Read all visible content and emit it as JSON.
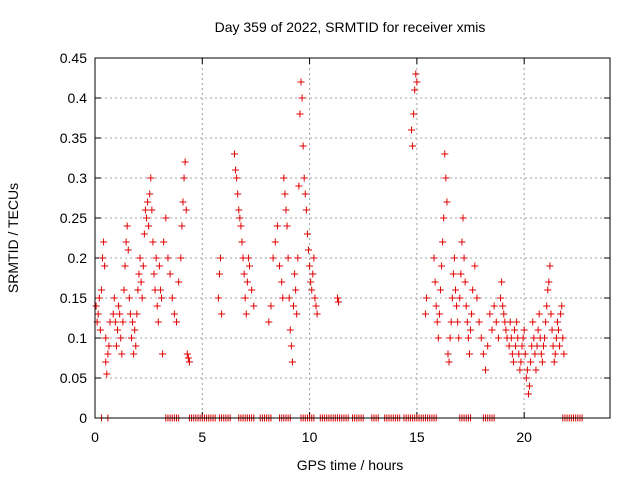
{
  "chart_data": {
    "type": "scatter",
    "title": "Day 359 of 2022, SRMTID for receiver xmis",
    "xlabel": "GPS time / hours",
    "ylabel": "SRMTID / TECUs",
    "xlim": [
      0,
      24
    ],
    "ylim": [
      0,
      0.45
    ],
    "xticks": [
      0,
      5,
      10,
      15,
      20
    ],
    "xtick_labels": [
      "0",
      "5",
      "10",
      "15",
      "20"
    ],
    "yticks": [
      0,
      0.05,
      0.1,
      0.15,
      0.2,
      0.25,
      0.3,
      0.35,
      0.4,
      0.45
    ],
    "ytick_labels": [
      "0",
      "0.05",
      "0.1",
      "0.15",
      "0.2",
      "0.25",
      "0.3",
      "0.35",
      "0.4",
      "0.45"
    ],
    "grid": true,
    "marker": "+",
    "color": "#e00000",
    "series": [
      {
        "name": "SRMTID",
        "points": [
          [
            0.05,
            0.14
          ],
          [
            0.1,
            0.12
          ],
          [
            0.15,
            0.13
          ],
          [
            0.2,
            0.15
          ],
          [
            0.25,
            0.11
          ],
          [
            0.3,
            0.16
          ],
          [
            0.35,
            0.2
          ],
          [
            0.4,
            0.22
          ],
          [
            0.45,
            0.19
          ],
          [
            0.5,
            0.1
          ],
          [
            0.5,
            0.07
          ],
          [
            0.55,
            0.055
          ],
          [
            0.6,
            0.08
          ],
          [
            0.65,
            0.09
          ],
          [
            0.7,
            0.12
          ],
          [
            0.85,
            0.13
          ],
          [
            0.9,
            0.15
          ],
          [
            0.95,
            0.12
          ],
          [
            1.0,
            0.09
          ],
          [
            1.05,
            0.11
          ],
          [
            1.1,
            0.14
          ],
          [
            1.15,
            0.13
          ],
          [
            1.2,
            0.1
          ],
          [
            1.25,
            0.08
          ],
          [
            1.3,
            0.12
          ],
          [
            1.35,
            0.16
          ],
          [
            1.4,
            0.19
          ],
          [
            1.45,
            0.22
          ],
          [
            1.5,
            0.24
          ],
          [
            1.55,
            0.21
          ],
          [
            1.6,
            0.15
          ],
          [
            1.65,
            0.13
          ],
          [
            1.7,
            0.1
          ],
          [
            1.75,
            0.12
          ],
          [
            1.8,
            0.08
          ],
          [
            1.85,
            0.11
          ],
          [
            1.9,
            0.09
          ],
          [
            1.95,
            0.13
          ],
          [
            2.0,
            0.16
          ],
          [
            2.05,
            0.18
          ],
          [
            2.1,
            0.2
          ],
          [
            2.15,
            0.17
          ],
          [
            2.2,
            0.15
          ],
          [
            2.25,
            0.19
          ],
          [
            2.3,
            0.23
          ],
          [
            2.35,
            0.26
          ],
          [
            2.4,
            0.25
          ],
          [
            2.45,
            0.27
          ],
          [
            2.5,
            0.24
          ],
          [
            2.55,
            0.28
          ],
          [
            2.6,
            0.3
          ],
          [
            2.65,
            0.26
          ],
          [
            2.7,
            0.22
          ],
          [
            2.75,
            0.18
          ],
          [
            2.8,
            0.16
          ],
          [
            2.85,
            0.2
          ],
          [
            2.9,
            0.14
          ],
          [
            2.95,
            0.12
          ],
          [
            3.0,
            0.19
          ],
          [
            3.05,
            0.16
          ],
          [
            3.1,
            0.15
          ],
          [
            3.15,
            0.08
          ],
          [
            3.2,
            0.22
          ],
          [
            3.3,
            0.25
          ],
          [
            3.4,
            0.2
          ],
          [
            3.5,
            0.18
          ],
          [
            3.6,
            0.15
          ],
          [
            3.7,
            0.13
          ],
          [
            3.8,
            0.12
          ],
          [
            3.9,
            0.17
          ],
          [
            4.0,
            0.2
          ],
          [
            4.05,
            0.24
          ],
          [
            4.1,
            0.27
          ],
          [
            4.15,
            0.3
          ],
          [
            4.2,
            0.32
          ],
          [
            4.25,
            0.26
          ],
          [
            4.3,
            0.08
          ],
          [
            4.35,
            0.075
          ],
          [
            4.4,
            0.07
          ],
          [
            5.75,
            0.15
          ],
          [
            5.8,
            0.18
          ],
          [
            5.85,
            0.2
          ],
          [
            5.9,
            0.13
          ],
          [
            6.5,
            0.33
          ],
          [
            6.55,
            0.31
          ],
          [
            6.6,
            0.3
          ],
          [
            6.65,
            0.28
          ],
          [
            6.7,
            0.26
          ],
          [
            6.75,
            0.25
          ],
          [
            6.8,
            0.24
          ],
          [
            6.85,
            0.22
          ],
          [
            6.9,
            0.2
          ],
          [
            6.95,
            0.18
          ],
          [
            7.0,
            0.15
          ],
          [
            7.05,
            0.13
          ],
          [
            7.1,
            0.17
          ],
          [
            7.15,
            0.2
          ],
          [
            7.2,
            0.19
          ],
          [
            7.3,
            0.16
          ],
          [
            7.4,
            0.14
          ],
          [
            8.1,
            0.12
          ],
          [
            8.2,
            0.14
          ],
          [
            8.3,
            0.2
          ],
          [
            8.4,
            0.22
          ],
          [
            8.5,
            0.24
          ],
          [
            8.6,
            0.19
          ],
          [
            8.7,
            0.17
          ],
          [
            8.75,
            0.15
          ],
          [
            8.8,
            0.3
          ],
          [
            8.85,
            0.28
          ],
          [
            8.9,
            0.26
          ],
          [
            8.95,
            0.24
          ],
          [
            9.0,
            0.2
          ],
          [
            9.05,
            0.15
          ],
          [
            9.1,
            0.11
          ],
          [
            9.15,
            0.09
          ],
          [
            9.2,
            0.07
          ],
          [
            9.25,
            0.14
          ],
          [
            9.3,
            0.18
          ],
          [
            9.35,
            0.16
          ],
          [
            9.4,
            0.13
          ],
          [
            9.45,
            0.2
          ],
          [
            9.5,
            0.29
          ],
          [
            9.55,
            0.38
          ],
          [
            9.6,
            0.42
          ],
          [
            9.65,
            0.4
          ],
          [
            9.7,
            0.34
          ],
          [
            9.75,
            0.3
          ],
          [
            9.8,
            0.28
          ],
          [
            9.85,
            0.26
          ],
          [
            9.9,
            0.23
          ],
          [
            9.95,
            0.21
          ],
          [
            10.0,
            0.19
          ],
          [
            10.05,
            0.17
          ],
          [
            10.1,
            0.16
          ],
          [
            10.15,
            0.18
          ],
          [
            10.2,
            0.2
          ],
          [
            10.25,
            0.15
          ],
          [
            10.3,
            0.14
          ],
          [
            10.35,
            0.13
          ],
          [
            11.3,
            0.15
          ],
          [
            11.35,
            0.145
          ],
          [
            14.75,
            0.36
          ],
          [
            14.8,
            0.34
          ],
          [
            14.85,
            0.38
          ],
          [
            14.9,
            0.41
          ],
          [
            14.95,
            0.43
          ],
          [
            15.0,
            0.42
          ],
          [
            15.4,
            0.13
          ],
          [
            15.45,
            0.15
          ],
          [
            15.8,
            0.2
          ],
          [
            15.85,
            0.17
          ],
          [
            15.9,
            0.14
          ],
          [
            15.95,
            0.12
          ],
          [
            16.0,
            0.1
          ],
          [
            16.05,
            0.13
          ],
          [
            16.1,
            0.16
          ],
          [
            16.15,
            0.19
          ],
          [
            16.2,
            0.22
          ],
          [
            16.25,
            0.25
          ],
          [
            16.3,
            0.33
          ],
          [
            16.35,
            0.3
          ],
          [
            16.4,
            0.27
          ],
          [
            16.45,
            0.08
          ],
          [
            16.5,
            0.07
          ],
          [
            16.55,
            0.1
          ],
          [
            16.6,
            0.12
          ],
          [
            16.65,
            0.15
          ],
          [
            16.7,
            0.18
          ],
          [
            16.75,
            0.2
          ],
          [
            16.8,
            0.16
          ],
          [
            16.85,
            0.14
          ],
          [
            16.9,
            0.12
          ],
          [
            16.95,
            0.1
          ],
          [
            17.0,
            0.15
          ],
          [
            17.05,
            0.18
          ],
          [
            17.1,
            0.22
          ],
          [
            17.15,
            0.25
          ],
          [
            17.2,
            0.2
          ],
          [
            17.25,
            0.17
          ],
          [
            17.3,
            0.14
          ],
          [
            17.35,
            0.12
          ],
          [
            17.4,
            0.1
          ],
          [
            17.45,
            0.08
          ],
          [
            17.5,
            0.11
          ],
          [
            17.55,
            0.13
          ],
          [
            17.6,
            0.16
          ],
          [
            17.7,
            0.19
          ],
          [
            17.8,
            0.15
          ],
          [
            17.9,
            0.12
          ],
          [
            18.0,
            0.1
          ],
          [
            18.1,
            0.08
          ],
          [
            18.2,
            0.06
          ],
          [
            18.3,
            0.09
          ],
          [
            18.4,
            0.13
          ],
          [
            18.5,
            0.11
          ],
          [
            18.6,
            0.14
          ],
          [
            18.7,
            0.12
          ],
          [
            18.8,
            0.1
          ],
          [
            18.9,
            0.15
          ],
          [
            18.95,
            0.17
          ],
          [
            19.0,
            0.14
          ],
          [
            19.05,
            0.13
          ],
          [
            19.1,
            0.12
          ],
          [
            19.15,
            0.11
          ],
          [
            19.2,
            0.1
          ],
          [
            19.3,
            0.09
          ],
          [
            19.35,
            0.12
          ],
          [
            19.4,
            0.1
          ],
          [
            19.45,
            0.08
          ],
          [
            19.5,
            0.07
          ],
          [
            19.55,
            0.11
          ],
          [
            19.6,
            0.09
          ],
          [
            19.65,
            0.12
          ],
          [
            19.7,
            0.1
          ],
          [
            19.75,
            0.08
          ],
          [
            19.8,
            0.06
          ],
          [
            19.85,
            0.07
          ],
          [
            19.9,
            0.09
          ],
          [
            19.95,
            0.1
          ],
          [
            20.0,
            0.11
          ],
          [
            20.05,
            0.08
          ],
          [
            20.1,
            0.05
          ],
          [
            20.15,
            0.06
          ],
          [
            20.2,
            0.03
          ],
          [
            20.25,
            0.04
          ],
          [
            20.3,
            0.07
          ],
          [
            20.35,
            0.09
          ],
          [
            20.4,
            0.12
          ],
          [
            20.45,
            0.1
          ],
          [
            20.5,
            0.08
          ],
          [
            20.55,
            0.06
          ],
          [
            20.6,
            0.09
          ],
          [
            20.65,
            0.11
          ],
          [
            20.7,
            0.13
          ],
          [
            20.75,
            0.1
          ],
          [
            20.8,
            0.08
          ],
          [
            20.85,
            0.07
          ],
          [
            20.9,
            0.09
          ],
          [
            20.95,
            0.1
          ],
          [
            21.0,
            0.12
          ],
          [
            21.05,
            0.14
          ],
          [
            21.1,
            0.16
          ],
          [
            21.15,
            0.17
          ],
          [
            21.2,
            0.19
          ],
          [
            21.25,
            0.13
          ],
          [
            21.3,
            0.11
          ],
          [
            21.35,
            0.09
          ],
          [
            21.4,
            0.07
          ],
          [
            21.45,
            0.08
          ],
          [
            21.5,
            0.1
          ],
          [
            21.55,
            0.12
          ],
          [
            21.6,
            0.11
          ],
          [
            21.65,
            0.09
          ],
          [
            21.7,
            0.13
          ],
          [
            21.75,
            0.14
          ],
          [
            21.8,
            0.1
          ],
          [
            21.85,
            0.08
          ]
        ],
        "zero_segments": [
          [
            0.3,
            0.35
          ],
          [
            0.6,
            0.65
          ],
          [
            3.3,
            3.9
          ],
          [
            4.4,
            5.6
          ],
          [
            5.8,
            6.3
          ],
          [
            6.7,
            7.4
          ],
          [
            7.7,
            8.2
          ],
          [
            8.6,
            9.1
          ],
          [
            9.6,
            10.2
          ],
          [
            10.5,
            11.8
          ],
          [
            12.0,
            12.5
          ],
          [
            12.9,
            13.2
          ],
          [
            13.5,
            14.2
          ],
          [
            14.4,
            15.9
          ],
          [
            17.0,
            17.5
          ],
          [
            18.1,
            18.6
          ],
          [
            21.8,
            22.7
          ]
        ]
      }
    ]
  }
}
